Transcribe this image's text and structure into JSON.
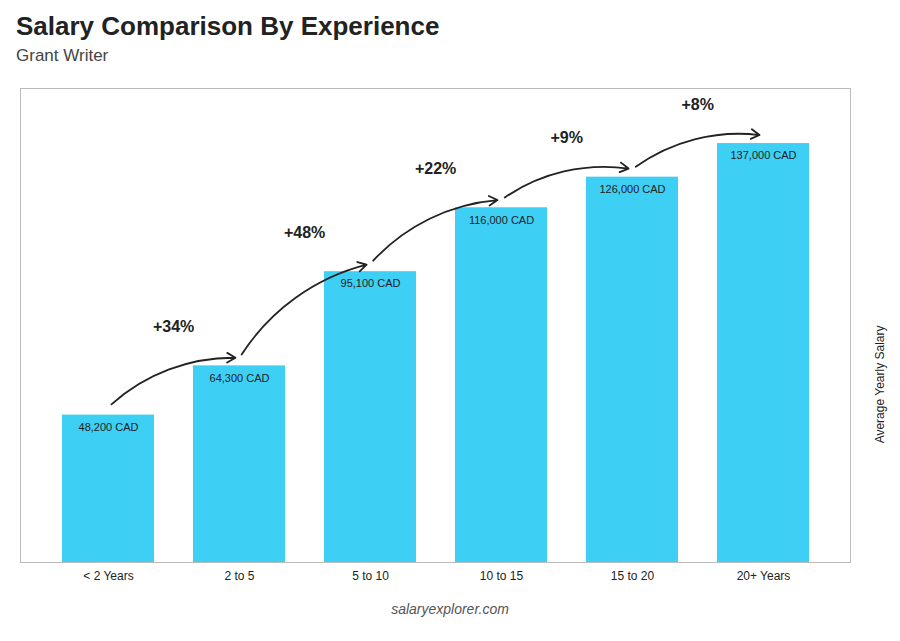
{
  "chart_data": {
    "type": "bar",
    "title": "Salary Comparison By Experience",
    "subtitle": "Grant Writer",
    "caption": "salaryexplorer.com",
    "ylabel": "Average Yearly Salary",
    "categories": [
      "< 2 Years",
      "2 to 5",
      "5 to 10",
      "10 to 15",
      "15 to 20",
      "20+ Years"
    ],
    "values": [
      48200,
      64300,
      95100,
      116000,
      126000,
      137000
    ],
    "value_labels": [
      "48,200 CAD",
      "64,300 CAD",
      "95,100 CAD",
      "116,000 CAD",
      "126,000 CAD",
      "137,000 CAD"
    ],
    "data_labels": true,
    "annotations": [
      "+34%",
      "+48%",
      "+22%",
      "+9%",
      "+8%"
    ],
    "color": "#3ecff5",
    "ylim": [
      0,
      155000
    ],
    "yticks": [],
    "tick_labels": "x",
    "grid": false
  }
}
